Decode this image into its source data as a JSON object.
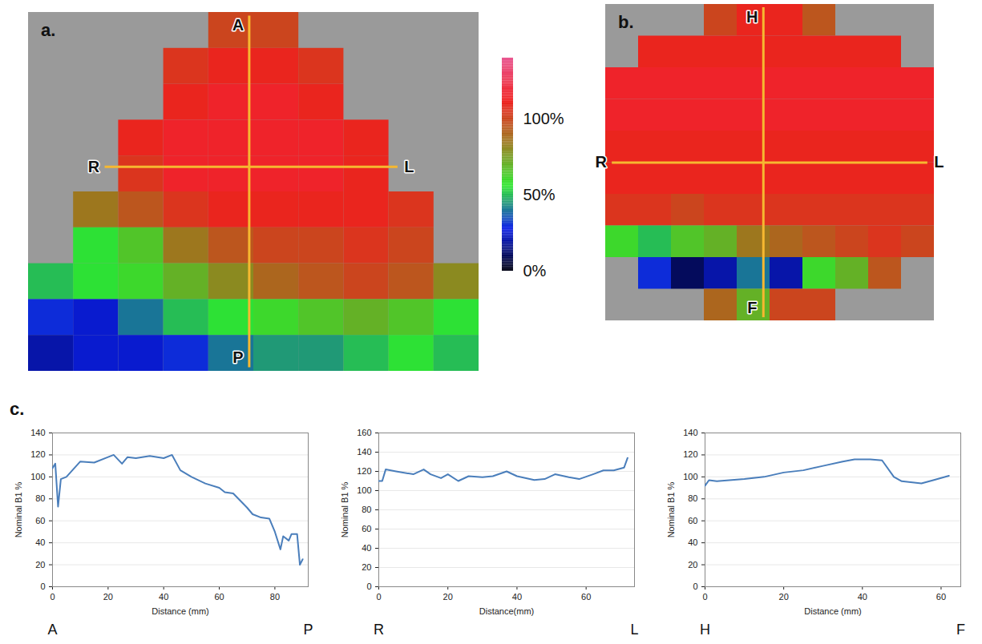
{
  "chart_data": [
    {
      "type": "heatmap",
      "title": "a.",
      "cells": [
        [
          null,
          null,
          null,
          null,
          100,
          100,
          null,
          null,
          null,
          null
        ],
        [
          null,
          null,
          null,
          105,
          110,
          110,
          105,
          null,
          null,
          null
        ],
        [
          null,
          null,
          null,
          110,
          115,
          115,
          110,
          null,
          null,
          null
        ],
        [
          null,
          null,
          110,
          115,
          115,
          115,
          115,
          110,
          null,
          null
        ],
        [
          null,
          null,
          105,
          115,
          115,
          115,
          115,
          110,
          null,
          null
        ],
        [
          null,
          85,
          95,
          105,
          110,
          110,
          110,
          110,
          105,
          null
        ],
        [
          null,
          55,
          65,
          85,
          95,
          100,
          100,
          105,
          100,
          null
        ],
        [
          50,
          55,
          60,
          70,
          80,
          90,
          95,
          100,
          95,
          80
        ],
        [
          30,
          25,
          40,
          50,
          55,
          60,
          65,
          70,
          65,
          55
        ],
        [
          20,
          25,
          25,
          30,
          40,
          45,
          45,
          50,
          55,
          50
        ]
      ],
      "colorbar": {
        "range": [
          0,
          140
        ],
        "ticks": [
          {
            "value": 0,
            "label": "0%"
          },
          {
            "value": 50,
            "label": "50%"
          },
          {
            "value": 100,
            "label": "100%"
          }
        ]
      },
      "profiles": [
        {
          "orientation": "vertical",
          "from": "A",
          "to": "P"
        },
        {
          "orientation": "horizontal",
          "from": "R",
          "to": "L"
        }
      ]
    },
    {
      "type": "heatmap",
      "title": "b.",
      "cells": [
        [
          null,
          null,
          null,
          100,
          110,
          110,
          95,
          null,
          null,
          null
        ],
        [
          null,
          110,
          110,
          110,
          110,
          110,
          110,
          110,
          110,
          null
        ],
        [
          115,
          115,
          115,
          115,
          115,
          115,
          115,
          115,
          115,
          115
        ],
        [
          115,
          115,
          115,
          115,
          115,
          115,
          115,
          115,
          115,
          115
        ],
        [
          110,
          110,
          110,
          110,
          110,
          110,
          110,
          110,
          110,
          110
        ],
        [
          110,
          110,
          110,
          110,
          110,
          110,
          110,
          110,
          110,
          110
        ],
        [
          105,
          105,
          100,
          105,
          105,
          105,
          105,
          105,
          105,
          105
        ],
        [
          60,
          50,
          65,
          70,
          85,
          90,
          95,
          100,
          105,
          100
        ],
        [
          null,
          30,
          10,
          20,
          40,
          20,
          60,
          70,
          95,
          null
        ],
        [
          null,
          null,
          null,
          90,
          70,
          100,
          100,
          null,
          null,
          null
        ]
      ],
      "profiles": [
        {
          "orientation": "vertical",
          "from": "H",
          "to": "F"
        },
        {
          "orientation": "horizontal",
          "from": "R",
          "to": "L"
        }
      ]
    },
    {
      "type": "line",
      "title": "c.",
      "color": "#4a7ebb",
      "grid": true,
      "xlabel": "Distance (mm)",
      "ylabel": "Nominal B1 %",
      "from": "A",
      "to": "P",
      "x": [
        0,
        1,
        2,
        3,
        5,
        10,
        15,
        20,
        22,
        25,
        27,
        30,
        35,
        40,
        43,
        46,
        50,
        55,
        60,
        62,
        65,
        70,
        72,
        75,
        78,
        80,
        82,
        83,
        85,
        86,
        88,
        89,
        90
      ],
      "values": [
        108,
        112,
        73,
        98,
        100,
        114,
        113,
        118,
        120,
        112,
        118,
        117,
        119,
        117,
        120,
        106,
        100,
        94,
        90,
        86,
        85,
        72,
        66,
        63,
        62,
        50,
        34,
        46,
        42,
        48,
        48,
        20,
        25
      ],
      "xlim": [
        0,
        92
      ],
      "xticks": [
        0,
        20,
        40,
        60,
        80
      ],
      "ylim": [
        0,
        140
      ],
      "yticks": [
        0,
        20,
        40,
        60,
        80,
        100,
        120,
        140
      ]
    },
    {
      "type": "line",
      "color": "#4a7ebb",
      "grid": true,
      "xlabel": "Distance(mm)",
      "ylabel": "Nominal B1 %",
      "from": "R",
      "to": "L",
      "x": [
        0,
        1,
        2,
        5,
        10,
        13,
        15,
        18,
        20,
        23,
        26,
        30,
        33,
        37,
        40,
        45,
        48,
        51,
        55,
        58,
        62,
        65,
        68,
        71,
        72
      ],
      "values": [
        110,
        110,
        122,
        120,
        117,
        122,
        117,
        113,
        117,
        110,
        115,
        114,
        115,
        120,
        115,
        111,
        112,
        117,
        114,
        112,
        117,
        121,
        121,
        124,
        134
      ],
      "xlim": [
        0,
        74
      ],
      "xticks": [
        0,
        20,
        40,
        60
      ],
      "ylim": [
        0,
        160
      ],
      "yticks": [
        0,
        20,
        40,
        60,
        80,
        100,
        120,
        140,
        160
      ]
    },
    {
      "type": "line",
      "color": "#4a7ebb",
      "grid": true,
      "xlabel": "Distance (mm)",
      "ylabel": "Nominal B1 %",
      "from": "H",
      "to": "F",
      "x": [
        0,
        1,
        3,
        10,
        15,
        20,
        25,
        30,
        35,
        38,
        42,
        45,
        48,
        50,
        55,
        58,
        62
      ],
      "values": [
        92,
        97,
        96,
        98,
        100,
        104,
        106,
        110,
        114,
        116,
        116,
        115,
        100,
        96,
        94,
        97,
        101
      ],
      "xlim": [
        0,
        65
      ],
      "xticks": [
        0,
        20,
        40,
        60
      ],
      "ylim": [
        0,
        140
      ],
      "yticks": [
        0,
        20,
        40,
        60,
        80,
        100,
        120,
        140
      ]
    }
  ]
}
